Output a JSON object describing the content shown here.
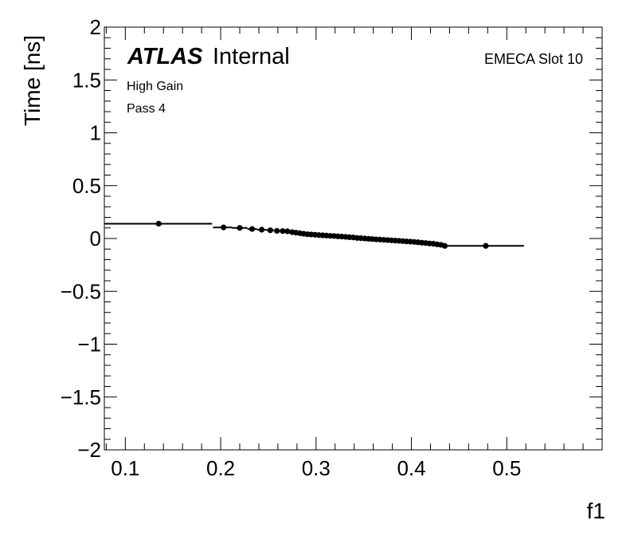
{
  "chart_data": {
    "type": "scatter",
    "xlabel": "f1",
    "ylabel": "Time [ns]",
    "xlim": [
      0.078,
      0.6
    ],
    "ylim": [
      -2,
      2
    ],
    "xticks": [
      {
        "v": 0.1,
        "label": "0.1"
      },
      {
        "v": 0.2,
        "label": "0.2"
      },
      {
        "v": 0.3,
        "label": "0.3"
      },
      {
        "v": 0.4,
        "label": "0.4"
      },
      {
        "v": 0.5,
        "label": "0.5"
      }
    ],
    "yticks": [
      {
        "v": 2,
        "label": "2"
      },
      {
        "v": 1.5,
        "label": "1.5"
      },
      {
        "v": 1,
        "label": "1"
      },
      {
        "v": 0.5,
        "label": "0.5"
      },
      {
        "v": 0,
        "label": "0"
      },
      {
        "v": -0.5,
        "label": "−0.5"
      },
      {
        "v": -1,
        "label": "−1"
      },
      {
        "v": -1.5,
        "label": "−1.5"
      },
      {
        "v": -2,
        "label": "−2"
      }
    ],
    "atlas_label": "ATLAS",
    "atlas_sublabel": "Internal",
    "annotations": [
      "High Gain",
      "Pass 4"
    ],
    "corner_label": "EMECA Slot 10",
    "series": [
      {
        "points": [
          {
            "x": 0.135,
            "y": 0.14,
            "xlo": 0.078,
            "xhi": 0.191
          },
          {
            "x": 0.203,
            "y": 0.105,
            "xlo": 0.192,
            "xhi": 0.212
          },
          {
            "x": 0.22,
            "y": 0.1,
            "xlo": 0.212,
            "xhi": 0.228
          },
          {
            "x": 0.233,
            "y": 0.09,
            "xlo": 0.228,
            "xhi": 0.238
          },
          {
            "x": 0.243,
            "y": 0.083,
            "xlo": 0.238,
            "xhi": 0.248
          },
          {
            "x": 0.252,
            "y": 0.078,
            "xlo": 0.248,
            "xhi": 0.256
          },
          {
            "x": 0.259,
            "y": 0.072,
            "xlo": 0.256,
            "xhi": 0.262
          },
          {
            "x": 0.265,
            "y": 0.07,
            "xlo": 0.262,
            "xhi": 0.268
          },
          {
            "x": 0.27,
            "y": 0.068,
            "xlo": 0.268,
            "xhi": 0.272
          },
          {
            "x": 0.275,
            "y": 0.06,
            "xlo": 0.272,
            "xhi": 0.277
          },
          {
            "x": 0.279,
            "y": 0.055,
            "xlo": 0.277,
            "xhi": 0.281
          },
          {
            "x": 0.283,
            "y": 0.05,
            "xlo": 0.281,
            "xhi": 0.285
          },
          {
            "x": 0.287,
            "y": 0.045,
            "xlo": 0.285,
            "xhi": 0.289
          },
          {
            "x": 0.291,
            "y": 0.04,
            "xlo": 0.289,
            "xhi": 0.293
          },
          {
            "x": 0.295,
            "y": 0.038,
            "xlo": 0.293,
            "xhi": 0.297
          },
          {
            "x": 0.299,
            "y": 0.035,
            "xlo": 0.297,
            "xhi": 0.301
          },
          {
            "x": 0.303,
            "y": 0.032,
            "xlo": 0.301,
            "xhi": 0.305
          },
          {
            "x": 0.307,
            "y": 0.03,
            "xlo": 0.305,
            "xhi": 0.309
          },
          {
            "x": 0.311,
            "y": 0.028,
            "xlo": 0.309,
            "xhi": 0.313
          },
          {
            "x": 0.315,
            "y": 0.025,
            "xlo": 0.313,
            "xhi": 0.317
          },
          {
            "x": 0.319,
            "y": 0.023,
            "xlo": 0.317,
            "xhi": 0.321
          },
          {
            "x": 0.323,
            "y": 0.02,
            "xlo": 0.321,
            "xhi": 0.325
          },
          {
            "x": 0.327,
            "y": 0.018,
            "xlo": 0.325,
            "xhi": 0.329
          },
          {
            "x": 0.331,
            "y": 0.015,
            "xlo": 0.329,
            "xhi": 0.333
          },
          {
            "x": 0.335,
            "y": 0.012,
            "xlo": 0.333,
            "xhi": 0.337
          },
          {
            "x": 0.339,
            "y": 0.01,
            "xlo": 0.337,
            "xhi": 0.341
          },
          {
            "x": 0.343,
            "y": 0.005,
            "xlo": 0.341,
            "xhi": 0.345
          },
          {
            "x": 0.347,
            "y": 0.003,
            "xlo": 0.345,
            "xhi": 0.349
          },
          {
            "x": 0.351,
            "y": 0.0,
            "xlo": 0.349,
            "xhi": 0.353
          },
          {
            "x": 0.355,
            "y": -0.003,
            "xlo": 0.353,
            "xhi": 0.357
          },
          {
            "x": 0.359,
            "y": -0.005,
            "xlo": 0.357,
            "xhi": 0.361
          },
          {
            "x": 0.363,
            "y": -0.008,
            "xlo": 0.361,
            "xhi": 0.365
          },
          {
            "x": 0.367,
            "y": -0.01,
            "xlo": 0.365,
            "xhi": 0.369
          },
          {
            "x": 0.371,
            "y": -0.013,
            "xlo": 0.369,
            "xhi": 0.373
          },
          {
            "x": 0.375,
            "y": -0.015,
            "xlo": 0.373,
            "xhi": 0.377
          },
          {
            "x": 0.379,
            "y": -0.018,
            "xlo": 0.377,
            "xhi": 0.381
          },
          {
            "x": 0.383,
            "y": -0.02,
            "xlo": 0.381,
            "xhi": 0.385
          },
          {
            "x": 0.387,
            "y": -0.022,
            "xlo": 0.385,
            "xhi": 0.389
          },
          {
            "x": 0.391,
            "y": -0.025,
            "xlo": 0.389,
            "xhi": 0.393
          },
          {
            "x": 0.395,
            "y": -0.028,
            "xlo": 0.393,
            "xhi": 0.397
          },
          {
            "x": 0.399,
            "y": -0.03,
            "xlo": 0.397,
            "xhi": 0.401
          },
          {
            "x": 0.403,
            "y": -0.033,
            "xlo": 0.401,
            "xhi": 0.405
          },
          {
            "x": 0.407,
            "y": -0.036,
            "xlo": 0.405,
            "xhi": 0.409
          },
          {
            "x": 0.411,
            "y": -0.04,
            "xlo": 0.409,
            "xhi": 0.413
          },
          {
            "x": 0.415,
            "y": -0.043,
            "xlo": 0.413,
            "xhi": 0.417
          },
          {
            "x": 0.419,
            "y": -0.047,
            "xlo": 0.417,
            "xhi": 0.421
          },
          {
            "x": 0.423,
            "y": -0.05,
            "xlo": 0.421,
            "xhi": 0.425
          },
          {
            "x": 0.427,
            "y": -0.055,
            "xlo": 0.425,
            "xhi": 0.429
          },
          {
            "x": 0.431,
            "y": -0.06,
            "xlo": 0.429,
            "xhi": 0.433
          },
          {
            "x": 0.435,
            "y": -0.07,
            "xlo": 0.433,
            "xhi": 0.437
          },
          {
            "x": 0.478,
            "y": -0.07,
            "xlo": 0.437,
            "xhi": 0.518
          }
        ]
      }
    ]
  }
}
